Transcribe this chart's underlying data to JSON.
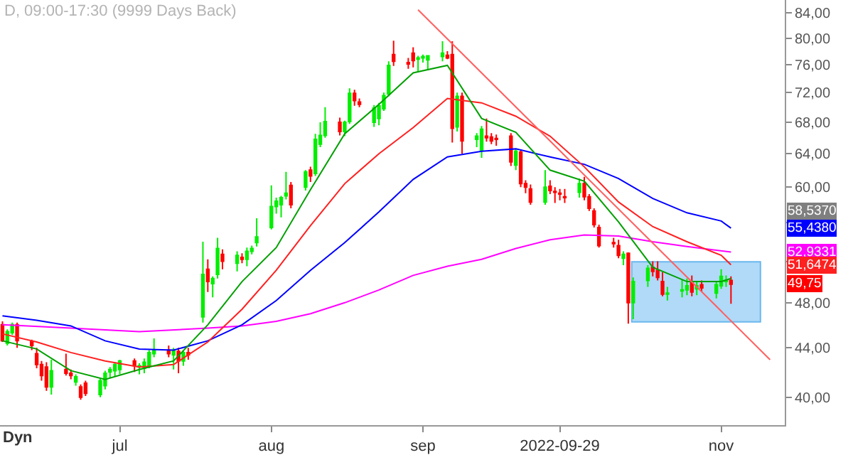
{
  "chart_data": {
    "type": "candlestick",
    "title": "D, 09:00-17:30 (9999 Days Back)",
    "annotations": [
      "Dyn",
      "58,5370",
      {
        "text": "55,4380",
        "y": 55.438
      },
      {
        "text": "52,9331",
        "y": 52.9331
      },
      {
        "text": "51,6474",
        "y": 51.6474
      },
      {
        "text": "49,75",
        "y": 49.75
      }
    ],
    "log": true,
    "ylim": [
      37.9,
      86.1
    ],
    "yticks": [
      {
        "value": 40,
        "label": "40,00"
      },
      {
        "value": 44,
        "label": "44,00"
      },
      {
        "value": 48,
        "label": "48,00"
      },
      {
        "value": 52,
        "label": null
      },
      {
        "value": 56,
        "label": null
      },
      {
        "value": 60,
        "label": "60,00"
      },
      {
        "value": 64,
        "label": "64,00"
      },
      {
        "value": 68,
        "label": "68,00"
      },
      {
        "value": 72,
        "label": "72,00"
      },
      {
        "value": 76,
        "label": "76,00"
      },
      {
        "value": 80,
        "label": "80,00"
      },
      {
        "value": 84,
        "label": "84,00"
      }
    ],
    "xlim": [
      "2022-06-06T12:00",
      "2022-11-14"
    ],
    "xticks": [
      {
        "value": "2022-07-01",
        "label": "jul"
      },
      {
        "value": "2022-08-01",
        "label": "aug"
      },
      {
        "value": "2022-09-01",
        "label": "sep"
      },
      {
        "value": "2022-09-29",
        "label": "2022-09-29"
      },
      {
        "value": "2022-11-01",
        "label": "nov"
      }
    ],
    "x": [
      "2022-06-07",
      "2022-06-08",
      "2022-06-09",
      "2022-06-10",
      "2022-06-13",
      "2022-06-14",
      "2022-06-15",
      "2022-06-16",
      "2022-06-17",
      "2022-06-20",
      "2022-06-21",
      "2022-06-22",
      "2022-06-23",
      "2022-06-24",
      "2022-06-27",
      "2022-06-28",
      "2022-06-29",
      "2022-06-30",
      "2022-07-01",
      "2022-07-04",
      "2022-07-05",
      "2022-07-06",
      "2022-07-07",
      "2022-07-08",
      "2022-07-11",
      "2022-07-12",
      "2022-07-13",
      "2022-07-14",
      "2022-07-15",
      "2022-07-18",
      "2022-07-19",
      "2022-07-20",
      "2022-07-21",
      "2022-07-22",
      "2022-07-25",
      "2022-07-26",
      "2022-07-27",
      "2022-07-28",
      "2022-07-29",
      "2022-08-01",
      "2022-08-02",
      "2022-08-03",
      "2022-08-04",
      "2022-08-05",
      "2022-08-08",
      "2022-08-09",
      "2022-08-10",
      "2022-08-11",
      "2022-08-12",
      "2022-08-15",
      "2022-08-16",
      "2022-08-17",
      "2022-08-18",
      "2022-08-19",
      "2022-08-22",
      "2022-08-23",
      "2022-08-24",
      "2022-08-25",
      "2022-08-26",
      "2022-08-29",
      "2022-08-30",
      "2022-08-31",
      "2022-09-01",
      "2022-09-02",
      "2022-09-05",
      "2022-09-06",
      "2022-09-07",
      "2022-09-08",
      "2022-09-09",
      "2022-09-12",
      "2022-09-13",
      "2022-09-14",
      "2022-09-15",
      "2022-09-16",
      "2022-09-19",
      "2022-09-20",
      "2022-09-21",
      "2022-09-22",
      "2022-09-23",
      "2022-09-26",
      "2022-09-27",
      "2022-09-28",
      "2022-09-29",
      "2022-09-30",
      "2022-10-03",
      "2022-10-04",
      "2022-10-05",
      "2022-10-06",
      "2022-10-07",
      "2022-10-10",
      "2022-10-11",
      "2022-10-12",
      "2022-10-13",
      "2022-10-14",
      "2022-10-17",
      "2022-10-18",
      "2022-10-19",
      "2022-10-20",
      "2022-10-21",
      "2022-10-24",
      "2022-10-25",
      "2022-10-26",
      "2022-10-27",
      "2022-10-28",
      "2022-10-31",
      "2022-11-01",
      "2022-11-02",
      "2022-11-03"
    ],
    "series": [
      {
        "type": "line",
        "color": "#ff00ff",
        "x": [
          "2022-06-07",
          "2022-06-21",
          "2022-07-05",
          "2022-07-19",
          "2022-07-26",
          "2022-08-02",
          "2022-08-09",
          "2022-08-16",
          "2022-08-23",
          "2022-08-30",
          "2022-09-06",
          "2022-09-13",
          "2022-09-20",
          "2022-09-27",
          "2022-10-04",
          "2022-10-11",
          "2022-10-18",
          "2022-10-25",
          "2022-11-03"
        ],
        "values": [
          46.0,
          45.7,
          45.4,
          45.7,
          45.9,
          46.3,
          47.0,
          48.0,
          49.2,
          50.6,
          51.5,
          52.2,
          53.3,
          54.2,
          54.7,
          54.6,
          54.0,
          53.5,
          52.9331
        ]
      },
      {
        "type": "line",
        "color": "#0000ff",
        "x": [
          "2022-06-07",
          "2022-06-14",
          "2022-06-21",
          "2022-06-28",
          "2022-07-05",
          "2022-07-12",
          "2022-07-19",
          "2022-07-26",
          "2022-08-02",
          "2022-08-09",
          "2022-08-16",
          "2022-08-23",
          "2022-08-30",
          "2022-09-06",
          "2022-09-13",
          "2022-09-20",
          "2022-09-27",
          "2022-10-04",
          "2022-10-11",
          "2022-10-18",
          "2022-10-25",
          "2022-11-01",
          "2022-11-03"
        ],
        "values": [
          46.8,
          46.4,
          45.9,
          44.6,
          43.9,
          43.8,
          44.6,
          46.0,
          48.2,
          51.1,
          53.9,
          57.2,
          60.9,
          63.6,
          64.3,
          64.6,
          63.6,
          62.7,
          61.0,
          58.7,
          57.1,
          56.2,
          55.438
        ]
      },
      {
        "type": "line",
        "color": "#ff2020",
        "x": [
          "2022-06-07",
          "2022-06-14",
          "2022-06-21",
          "2022-06-28",
          "2022-07-05",
          "2022-07-12",
          "2022-07-19",
          "2022-07-26",
          "2022-08-02",
          "2022-08-09",
          "2022-08-16",
          "2022-08-23",
          "2022-08-30",
          "2022-09-06",
          "2022-09-13",
          "2022-09-20",
          "2022-09-27",
          "2022-10-04",
          "2022-10-11",
          "2022-10-18",
          "2022-10-25",
          "2022-11-01",
          "2022-11-03"
        ],
        "values": [
          45.2,
          44.5,
          43.6,
          42.9,
          42.4,
          42.6,
          44.5,
          47.4,
          51.1,
          55.7,
          60.4,
          64.0,
          67.3,
          71.2,
          70.6,
          68.8,
          66.2,
          62.4,
          58.3,
          55.6,
          54.0,
          52.6,
          51.6474
        ]
      },
      {
        "type": "line",
        "color": "#00a000",
        "x": [
          "2022-06-07",
          "2022-06-14",
          "2022-06-21",
          "2022-06-28",
          "2022-07-05",
          "2022-07-12",
          "2022-07-19",
          "2022-07-26",
          "2022-08-02",
          "2022-08-09",
          "2022-08-16",
          "2022-08-23",
          "2022-08-30",
          "2022-09-06",
          "2022-09-13",
          "2022-09-20",
          "2022-09-27",
          "2022-10-04",
          "2022-10-11",
          "2022-10-18",
          "2022-10-25",
          "2022-11-01",
          "2022-11-03"
        ],
        "values": [
          44.6,
          43.9,
          42.1,
          41.4,
          42.2,
          42.9,
          46.0,
          50.0,
          53.4,
          59.7,
          66.5,
          70.4,
          74.8,
          75.9,
          68.5,
          66.7,
          62.0,
          60.7,
          56.1,
          51.4,
          50.0,
          50.0,
          50.3
        ]
      },
      {
        "type": "line",
        "color": "#ff6060",
        "x": [
          "2022-08-31",
          "2022-11-11"
        ],
        "values": [
          84.5,
          43.0
        ]
      },
      {
        "ohlc": [
          [
            46.0,
            46.3,
            44.5,
            44.6
          ],
          [
            44.4,
            45.6,
            44.2,
            45.4
          ],
          [
            45.3,
            46.2,
            45.1,
            46.0
          ],
          [
            46.0,
            46.2,
            44.0,
            44.6
          ],
          [
            44.5,
            44.7,
            43.8,
            44.2
          ],
          [
            43.5,
            44.0,
            42.3,
            42.6
          ],
          [
            42.6,
            42.9,
            41.3,
            41.7
          ],
          [
            42.4,
            42.8,
            40.5,
            40.8
          ],
          [
            40.8,
            43.0,
            40.2,
            42.1
          ],
          [
            42.2,
            43.5,
            41.7,
            41.9
          ],
          [
            41.9,
            42.2,
            41.4,
            41.7
          ],
          [
            41.2,
            41.8,
            40.9,
            41.6
          ],
          [
            40.8,
            41.0,
            39.8,
            40.0
          ],
          [
            41.1,
            41.3,
            40.1,
            40.3
          ],
          [
            40.2,
            41.5,
            40.0,
            41.3
          ],
          [
            40.9,
            42.1,
            40.6,
            41.9
          ],
          [
            42.0,
            42.4,
            41.5,
            42.2
          ],
          [
            42.1,
            42.8,
            41.6,
            42.6
          ],
          [
            42.2,
            43.0,
            41.8,
            42.9
          ],
          [
            42.9,
            43.1,
            42.0,
            42.5
          ],
          [
            42.4,
            42.7,
            41.8,
            42.5
          ],
          [
            42.3,
            43.1,
            41.9,
            42.8
          ],
          [
            42.5,
            43.8,
            42.3,
            43.6
          ],
          [
            43.5,
            44.8,
            43.2,
            43.8
          ],
          [
            43.8,
            44.2,
            43.2,
            43.5
          ],
          [
            43.4,
            44.0,
            42.2,
            43.8
          ],
          [
            43.7,
            44.0,
            41.9,
            42.9
          ],
          [
            42.9,
            43.8,
            42.5,
            43.6
          ],
          [
            43.6,
            44.0,
            43.0,
            43.4
          ],
          [
            46.7,
            54.0,
            46.2,
            50.7
          ],
          [
            51.2,
            52.2,
            49.0,
            50.0
          ],
          [
            49.8,
            50.5,
            48.5,
            50.3
          ],
          [
            50.7,
            54.4,
            50.3,
            53.3
          ],
          [
            52.7,
            53.2,
            51.2,
            52.0
          ],
          [
            51.8,
            53.0,
            51.0,
            52.6
          ],
          [
            52.4,
            52.8,
            51.8,
            52.2
          ],
          [
            52.2,
            53.4,
            51.5,
            53.0
          ],
          [
            53.0,
            53.6,
            52.7,
            53.3
          ],
          [
            53.9,
            56.5,
            53.5,
            54.5
          ],
          [
            55.5,
            60.2,
            55.3,
            57.8
          ],
          [
            57.8,
            58.8,
            57.0,
            58.4
          ],
          [
            58.0,
            59.0,
            56.6,
            58.8
          ],
          [
            59.0,
            61.8,
            58.6,
            59.3
          ],
          [
            60.2,
            60.6,
            57.6,
            58.0
          ],
          [
            60.0,
            62.0,
            59.6,
            61.8
          ],
          [
            62.0,
            62.4,
            60.6,
            61.3
          ],
          [
            61.6,
            66.5,
            61.3,
            65.8
          ],
          [
            65.2,
            68.0,
            64.8,
            66.3
          ],
          [
            66.3,
            70.0,
            66.0,
            68.1
          ],
          [
            68.0,
            68.6,
            66.3,
            66.8
          ],
          [
            66.8,
            68.2,
            66.2,
            68.0
          ],
          [
            68.1,
            72.6,
            67.8,
            71.9
          ],
          [
            71.9,
            72.4,
            70.2,
            70.9
          ],
          [
            70.7,
            71.2,
            70.0,
            70.4
          ],
          [
            68.0,
            70.3,
            67.4,
            69.9
          ],
          [
            68.5,
            70.6,
            67.6,
            70.2
          ],
          [
            69.8,
            72.0,
            69.5,
            71.6
          ],
          [
            71.8,
            76.5,
            71.5,
            75.9
          ],
          [
            77.5,
            79.6,
            75.8,
            76.5
          ],
          [
            76.3,
            77.0,
            75.4,
            76.1
          ],
          [
            77.7,
            78.6,
            75.6,
            76.6
          ],
          [
            76.8,
            77.3,
            75.0,
            77.0
          ],
          [
            77.0,
            77.5,
            76.3,
            77.2
          ],
          [
            76.7,
            77.4,
            75.2,
            77.3
          ],
          [
            77.2,
            79.5,
            76.5,
            77.7
          ],
          [
            77.4,
            78.0,
            76.8,
            77.0
          ],
          [
            77.5,
            79.5,
            65.4,
            67.2
          ],
          [
            67.4,
            72.0,
            66.8,
            71.5
          ],
          [
            71.5,
            72.0,
            64.0,
            65.6
          ],
          [
            65.8,
            66.6,
            64.8,
            66.2
          ],
          [
            64.4,
            67.5,
            63.5,
            67.1
          ],
          [
            66.2,
            68.5,
            65.5,
            66.0
          ],
          [
            66.1,
            66.6,
            65.2,
            65.6
          ],
          [
            65.9,
            66.4,
            65.0,
            65.8
          ],
          [
            66.2,
            66.6,
            62.5,
            63.0
          ],
          [
            62.6,
            64.6,
            62.0,
            64.3
          ],
          [
            64.2,
            64.5,
            60.0,
            60.4
          ],
          [
            60.4,
            60.8,
            59.3,
            60.0
          ],
          [
            59.8,
            60.3,
            58.0,
            58.3
          ],
          [
            58.3,
            62.0,
            58.0,
            60.0
          ],
          [
            60.1,
            60.8,
            59.2,
            59.6
          ],
          [
            59.5,
            60.0,
            58.2,
            59.4
          ],
          [
            59.3,
            59.8,
            58.5,
            59.2
          ],
          [
            58.9,
            59.8,
            58.2,
            58.8
          ],
          [
            59.4,
            61.0,
            58.8,
            60.4
          ],
          [
            60.4,
            61.2,
            58.5,
            58.9
          ],
          [
            58.9,
            59.2,
            57.3,
            57.6
          ],
          [
            57.3,
            57.6,
            55.5,
            55.8
          ],
          [
            55.5,
            55.8,
            53.4,
            53.6
          ],
          [
            53.9,
            54.4,
            53.4,
            53.8
          ],
          [
            53.6,
            54.2,
            52.3,
            52.6
          ],
          [
            52.3,
            53.0,
            51.6,
            52.7
          ],
          [
            52.8,
            52.9,
            46.1,
            48.0
          ],
          [
            48.0,
            50.4,
            46.5,
            50.0
          ],
          [
            50.1,
            51.6,
            49.5,
            51.3
          ],
          [
            51.4,
            52.0,
            50.5,
            51.0
          ],
          [
            51.1,
            52.0,
            50.1,
            50.4
          ],
          [
            50.0,
            50.9,
            48.6,
            48.8
          ],
          [
            48.8,
            49.5,
            48.2,
            48.9
          ],
          [
            49.1,
            50.2,
            48.5,
            49.2
          ],
          [
            49.2,
            50.3,
            48.7,
            49.6
          ],
          [
            50.0,
            50.6,
            48.6,
            49.0
          ],
          [
            49.3,
            50.0,
            48.7,
            49.6
          ],
          [
            49.7,
            50.1,
            49.0,
            49.4
          ],
          [
            48.9,
            50.0,
            48.4,
            49.7
          ],
          [
            49.6,
            51.2,
            49.3,
            50.5
          ],
          [
            50.0,
            50.6,
            49.5,
            50.1
          ],
          [
            50.1,
            50.5,
            47.9,
            49.75
          ]
        ],
        "colors": [
          "#ff0000",
          "#00ee00",
          "#00ee00",
          "#ff0000",
          "#ff0000",
          "#ff0000",
          "#ff0000",
          "#ff0000",
          "#00ee00",
          "#ff0000",
          "#ff0000",
          "#00ee00",
          "#ff0000",
          "#ff0000",
          "#00ee00",
          "#00ee00",
          "#00ee00",
          "#00ee00",
          "#00ee00",
          "#ff0000",
          "#00ee00",
          "#00ee00",
          "#00ee00",
          "#00ee00",
          "#ff0000",
          "#00ee00",
          "#ff0000",
          "#00ee00",
          "#ff0000",
          "#00ee00",
          "#ff0000",
          "#00ee00",
          "#00ee00",
          "#ff0000",
          "#00ee00",
          "#ff0000",
          "#00ee00",
          "#00ee00",
          "#00ee00",
          "#00ee00",
          "#00ee00",
          "#00ee00",
          "#00ee00",
          "#ff0000",
          "#00ee00",
          "#ff0000",
          "#00ee00",
          "#00ee00",
          "#00ee00",
          "#ff0000",
          "#00ee00",
          "#00ee00",
          "#ff0000",
          "#ff0000",
          "#00ee00",
          "#00ee00",
          "#00ee00",
          "#00ee00",
          "#ff0000",
          "#ff0000",
          "#ff0000",
          "#00ee00",
          "#00ee00",
          "#00ee00",
          "#00ee00",
          "#ff0000",
          "#ff0000",
          "#00ee00",
          "#ff0000",
          "#00ee00",
          "#00ee00",
          "#ff0000",
          "#ff0000",
          "#ff0000",
          "#ff0000",
          "#00ee00",
          "#ff0000",
          "#ff0000",
          "#ff0000",
          "#00ee00",
          "#ff0000",
          "#ff0000",
          "#ff0000",
          "#ff0000",
          "#00ee00",
          "#ff0000",
          "#ff0000",
          "#ff0000",
          "#ff0000",
          "#ff0000",
          "#ff0000",
          "#00ee00",
          "#ff0000",
          "#00ee00",
          "#00ee00",
          "#ff0000",
          "#ff0000",
          "#ff0000",
          "#00ee00",
          "#00ee00",
          "#00ee00",
          "#ff0000",
          "#00ee00",
          "#ff0000",
          "#00ee00",
          "#00ee00",
          "#00ee00",
          "#ff0000"
        ]
      }
    ]
  }
}
